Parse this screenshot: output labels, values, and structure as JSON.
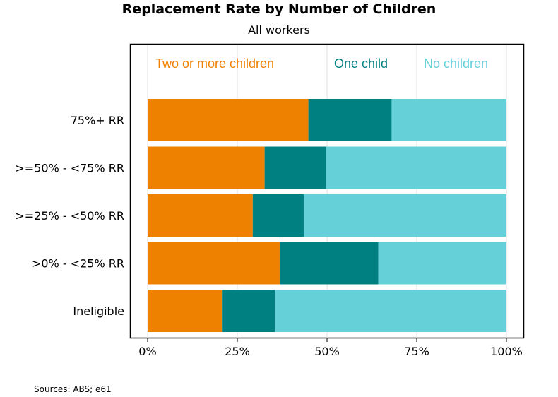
{
  "chart_data": {
    "type": "bar",
    "orientation": "horizontal",
    "stacked": true,
    "normalized": true,
    "title": "Replacement Rate by Number of Children",
    "subtitle": "All workers",
    "categories": [
      "75%+ RR",
      ">=50% - <75% RR",
      ">=25% - <50% RR",
      ">0% - <25% RR",
      "Ineligible"
    ],
    "series": [
      {
        "name": "Two or more children",
        "color": "#ee8100",
        "values": [
          44.8,
          32.6,
          29.3,
          36.8,
          20.9
        ]
      },
      {
        "name": "One child",
        "color": "#008080",
        "values": [
          23.2,
          17.1,
          14.2,
          27.5,
          14.6
        ]
      },
      {
        "name": "No children",
        "color": "#66d0d9",
        "values": [
          32.0,
          50.3,
          56.5,
          35.7,
          64.5
        ]
      }
    ],
    "xlim": [
      0,
      100
    ],
    "xticks": [
      "0%",
      "25%",
      "50%",
      "75%",
      "100%"
    ],
    "legend_position": "top-inside",
    "grid": true
  },
  "footer": {
    "source": "Sources: ABS; e61"
  }
}
